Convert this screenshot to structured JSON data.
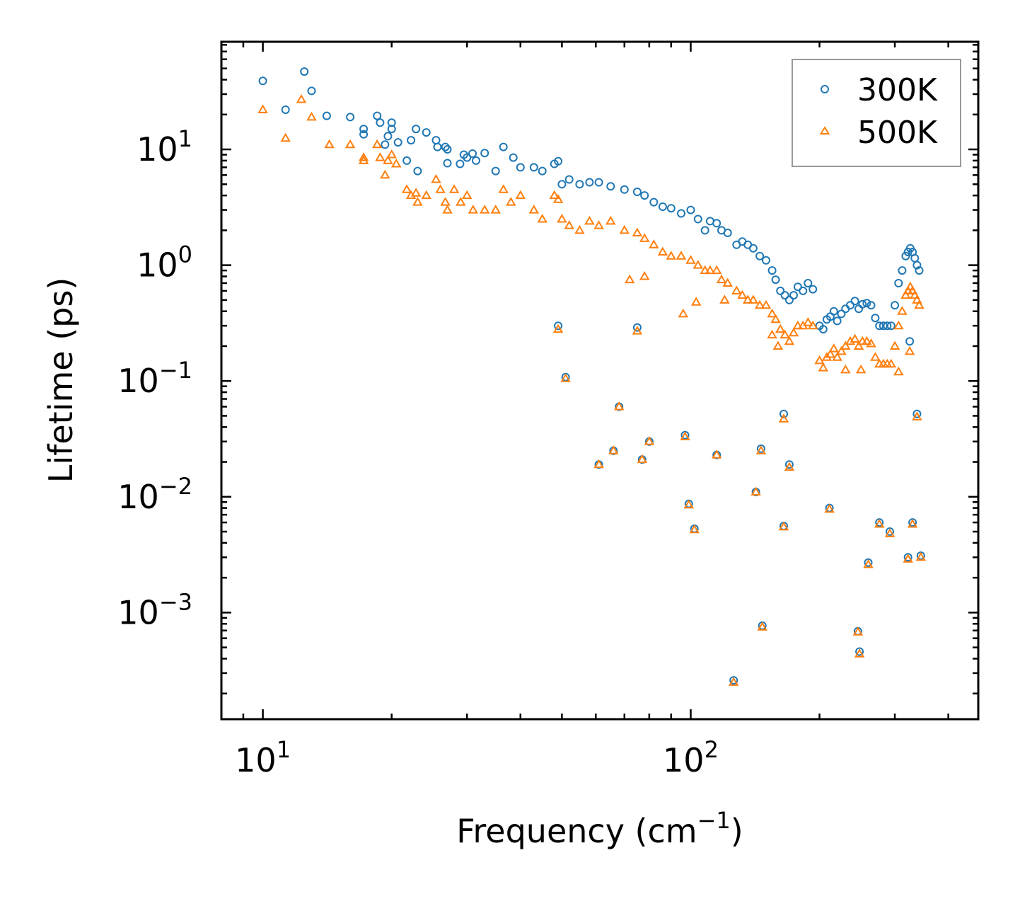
{
  "chart_data": {
    "type": "scatter",
    "title": "",
    "xlabel": "Frequency (cm",
    "xlabel_exp": "−1",
    "xlabel_suffix": ")",
    "ylabel": "Lifetime (ps)",
    "xscale": "log",
    "yscale": "log",
    "xlim": [
      8,
      470
    ],
    "ylim": [
      0.00012,
      85
    ],
    "legend_position": "top-right",
    "x_ticks": [
      {
        "value": 10,
        "base": "10",
        "exp": "1"
      },
      {
        "value": 100,
        "base": "10",
        "exp": "2"
      }
    ],
    "y_ticks": [
      {
        "value": 10,
        "base": "10",
        "exp": "1"
      },
      {
        "value": 1,
        "base": "10",
        "exp": "0"
      },
      {
        "value": 0.1,
        "base": "10",
        "exp": "−1"
      },
      {
        "value": 0.01,
        "base": "10",
        "exp": "−2"
      },
      {
        "value": 0.001,
        "base": "10",
        "exp": "−3"
      }
    ],
    "series": [
      {
        "name": "300K",
        "marker": "circle",
        "color": "#1f77b4",
        "points": [
          [
            10,
            39
          ],
          [
            11.3,
            22
          ],
          [
            12.5,
            47
          ],
          [
            13,
            32
          ],
          [
            14.1,
            19.5
          ],
          [
            16,
            19
          ],
          [
            17.2,
            15
          ],
          [
            17.2,
            13.5
          ],
          [
            18.5,
            19.5
          ],
          [
            18.8,
            17
          ],
          [
            19.3,
            11
          ],
          [
            19.6,
            13
          ],
          [
            20,
            15
          ],
          [
            20,
            17
          ],
          [
            20.7,
            11.5
          ],
          [
            21.7,
            8
          ],
          [
            22.2,
            12
          ],
          [
            22.8,
            15
          ],
          [
            23,
            6.5
          ],
          [
            24.1,
            14
          ],
          [
            25.4,
            12
          ],
          [
            25.6,
            10.5
          ],
          [
            26.7,
            10.5
          ],
          [
            27,
            10
          ],
          [
            27,
            7.6
          ],
          [
            28.9,
            7.5
          ],
          [
            29.5,
            9
          ],
          [
            30,
            8.5
          ],
          [
            30.9,
            9.2
          ],
          [
            31.5,
            8
          ],
          [
            33,
            9.3
          ],
          [
            35,
            6.5
          ],
          [
            36.5,
            10.5
          ],
          [
            38.5,
            8.5
          ],
          [
            40,
            7
          ],
          [
            43,
            7
          ],
          [
            45,
            6.5
          ],
          [
            48,
            7.5
          ],
          [
            49,
            7.9
          ],
          [
            50,
            5
          ],
          [
            52,
            5.5
          ],
          [
            55,
            5
          ],
          [
            58,
            5.2
          ],
          [
            61,
            5.2
          ],
          [
            65,
            4.8
          ],
          [
            70,
            4.5
          ],
          [
            75,
            4.3
          ],
          [
            78,
            4
          ],
          [
            82,
            3.5
          ],
          [
            86,
            3.2
          ],
          [
            90,
            3.1
          ],
          [
            95,
            2.8
          ],
          [
            100,
            3
          ],
          [
            104,
            2.5
          ],
          [
            108,
            2
          ],
          [
            111,
            2.4
          ],
          [
            115,
            2.3
          ],
          [
            118,
            2
          ],
          [
            122,
            1.9
          ],
          [
            128,
            1.5
          ],
          [
            132,
            1.6
          ],
          [
            136,
            1.5
          ],
          [
            140,
            1.4
          ],
          [
            145,
            1.2
          ],
          [
            150,
            1.1
          ],
          [
            155,
            0.9
          ],
          [
            158,
            0.75
          ],
          [
            162,
            0.6
          ],
          [
            166,
            0.55
          ],
          [
            170,
            0.5
          ],
          [
            174,
            0.55
          ],
          [
            178,
            0.65
          ],
          [
            183,
            0.6
          ],
          [
            188,
            0.7
          ],
          [
            193,
            0.62
          ],
          [
            200,
            0.3
          ],
          [
            204,
            0.28
          ],
          [
            208,
            0.34
          ],
          [
            212,
            0.36
          ],
          [
            216,
            0.4
          ],
          [
            220,
            0.33
          ],
          [
            225,
            0.38
          ],
          [
            230,
            0.42
          ],
          [
            236,
            0.45
          ],
          [
            242,
            0.49
          ],
          [
            247,
            0.42
          ],
          [
            252,
            0.46
          ],
          [
            258,
            0.47
          ],
          [
            264,
            0.45
          ],
          [
            270,
            0.35
          ],
          [
            276,
            0.3
          ],
          [
            282,
            0.3
          ],
          [
            288,
            0.3
          ],
          [
            294,
            0.3
          ],
          [
            300,
            0.45
          ],
          [
            306,
            0.7
          ],
          [
            312,
            0.9
          ],
          [
            318,
            1.2
          ],
          [
            322,
            1.3
          ],
          [
            326,
            1.4
          ],
          [
            330,
            1.3
          ],
          [
            334,
            1.15
          ],
          [
            338,
            1.0
          ],
          [
            342,
            0.9
          ],
          [
            325,
            0.22
          ],
          [
            49,
            0.3
          ],
          [
            51,
            0.108
          ],
          [
            75,
            0.29
          ],
          [
            61,
            0.019
          ],
          [
            66,
            0.025
          ],
          [
            68,
            0.06
          ],
          [
            77,
            0.021
          ],
          [
            80,
            0.03
          ],
          [
            97,
            0.034
          ],
          [
            99,
            0.0087
          ],
          [
            102,
            0.0053
          ],
          [
            115,
            0.023
          ],
          [
            142,
            0.011
          ],
          [
            146,
            0.026
          ],
          [
            165,
            0.0056
          ],
          [
            165,
            0.052
          ],
          [
            170,
            0.019
          ],
          [
            211,
            0.008
          ],
          [
            246,
            0.00069
          ],
          [
            248,
            0.00046
          ],
          [
            260,
            0.0027
          ],
          [
            276,
            0.006
          ],
          [
            292,
            0.005
          ],
          [
            322,
            0.003
          ],
          [
            330,
            0.006
          ],
          [
            338,
            0.052
          ],
          [
            345,
            0.0031
          ],
          [
            147,
            0.00077
          ],
          [
            126,
            0.00026
          ]
        ]
      },
      {
        "name": "500K",
        "marker": "triangle",
        "color": "#ff7f0e",
        "points": [
          [
            10,
            22
          ],
          [
            11.3,
            12.5
          ],
          [
            12.3,
            27
          ],
          [
            13,
            19
          ],
          [
            14.3,
            11
          ],
          [
            16,
            11
          ],
          [
            17.2,
            8.5
          ],
          [
            17.2,
            8
          ],
          [
            18.5,
            11
          ],
          [
            18.8,
            8.5
          ],
          [
            19.3,
            6
          ],
          [
            19.6,
            8
          ],
          [
            20,
            9
          ],
          [
            20.5,
            7.5
          ],
          [
            21.7,
            4.5
          ],
          [
            22.2,
            4
          ],
          [
            22.8,
            4.2
          ],
          [
            23,
            3.5
          ],
          [
            24.1,
            4
          ],
          [
            25.4,
            5.5
          ],
          [
            26,
            4.5
          ],
          [
            26.7,
            3.5
          ],
          [
            27,
            3
          ],
          [
            28,
            4.5
          ],
          [
            29,
            3.5
          ],
          [
            30,
            4
          ],
          [
            31,
            3
          ],
          [
            33,
            3
          ],
          [
            35,
            3
          ],
          [
            36.5,
            4.5
          ],
          [
            38,
            3.5
          ],
          [
            40,
            4
          ],
          [
            43,
            3
          ],
          [
            45,
            2.5
          ],
          [
            48,
            4
          ],
          [
            49,
            3.7
          ],
          [
            50,
            2.5
          ],
          [
            52,
            2.2
          ],
          [
            55,
            2
          ],
          [
            58,
            2.4
          ],
          [
            61,
            2.2
          ],
          [
            65,
            2.4
          ],
          [
            70,
            2.0
          ],
          [
            75,
            1.9
          ],
          [
            78,
            1.7
          ],
          [
            82,
            1.5
          ],
          [
            86,
            1.3
          ],
          [
            90,
            1.2
          ],
          [
            95,
            1.2
          ],
          [
            100,
            1.1
          ],
          [
            104,
            1.0
          ],
          [
            108,
            0.9
          ],
          [
            111,
            0.9
          ],
          [
            115,
            0.9
          ],
          [
            118,
            0.75
          ],
          [
            122,
            0.7
          ],
          [
            128,
            0.6
          ],
          [
            132,
            0.55
          ],
          [
            136,
            0.5
          ],
          [
            140,
            0.5
          ],
          [
            145,
            0.45
          ],
          [
            150,
            0.45
          ],
          [
            155,
            0.38
          ],
          [
            158,
            0.34
          ],
          [
            162,
            0.28
          ],
          [
            166,
            0.25
          ],
          [
            170,
            0.22
          ],
          [
            174,
            0.26
          ],
          [
            178,
            0.3
          ],
          [
            183,
            0.3
          ],
          [
            188,
            0.32
          ],
          [
            193,
            0.3
          ],
          [
            200,
            0.15
          ],
          [
            204,
            0.13
          ],
          [
            208,
            0.16
          ],
          [
            212,
            0.17
          ],
          [
            216,
            0.19
          ],
          [
            220,
            0.16
          ],
          [
            225,
            0.18
          ],
          [
            230,
            0.2
          ],
          [
            236,
            0.22
          ],
          [
            242,
            0.23
          ],
          [
            247,
            0.2
          ],
          [
            252,
            0.22
          ],
          [
            258,
            0.22
          ],
          [
            264,
            0.21
          ],
          [
            270,
            0.16
          ],
          [
            276,
            0.14
          ],
          [
            282,
            0.14
          ],
          [
            288,
            0.14
          ],
          [
            294,
            0.14
          ],
          [
            300,
            0.2
          ],
          [
            306,
            0.3
          ],
          [
            312,
            0.4
          ],
          [
            318,
            0.55
          ],
          [
            322,
            0.6
          ],
          [
            326,
            0.65
          ],
          [
            330,
            0.6
          ],
          [
            334,
            0.55
          ],
          [
            338,
            0.5
          ],
          [
            342,
            0.45
          ],
          [
            325,
            0.18
          ],
          [
            49,
            0.28
          ],
          [
            51,
            0.105
          ],
          [
            75,
            0.27
          ],
          [
            61,
            0.019
          ],
          [
            66,
            0.025
          ],
          [
            68,
            0.06
          ],
          [
            77,
            0.021
          ],
          [
            80,
            0.03
          ],
          [
            97,
            0.033
          ],
          [
            99,
            0.0085
          ],
          [
            102,
            0.0052
          ],
          [
            115,
            0.023
          ],
          [
            142,
            0.011
          ],
          [
            146,
            0.025
          ],
          [
            165,
            0.0055
          ],
          [
            165,
            0.047
          ],
          [
            170,
            0.018
          ],
          [
            211,
            0.0078
          ],
          [
            246,
            0.00068
          ],
          [
            248,
            0.00044
          ],
          [
            260,
            0.0026
          ],
          [
            276,
            0.0058
          ],
          [
            292,
            0.0048
          ],
          [
            322,
            0.0029
          ],
          [
            330,
            0.0058
          ],
          [
            338,
            0.049
          ],
          [
            345,
            0.003
          ],
          [
            147,
            0.00075
          ],
          [
            126,
            0.00025
          ],
          [
            72,
            0.75
          ],
          [
            78,
            0.8
          ],
          [
            96,
            0.38
          ],
          [
            103,
            0.48
          ],
          [
            120,
            0.5
          ],
          [
            155,
            0.25
          ],
          [
            160,
            0.2
          ],
          [
            230,
            0.125
          ],
          [
            250,
            0.125
          ],
          [
            306,
            0.12
          ]
        ]
      }
    ]
  }
}
